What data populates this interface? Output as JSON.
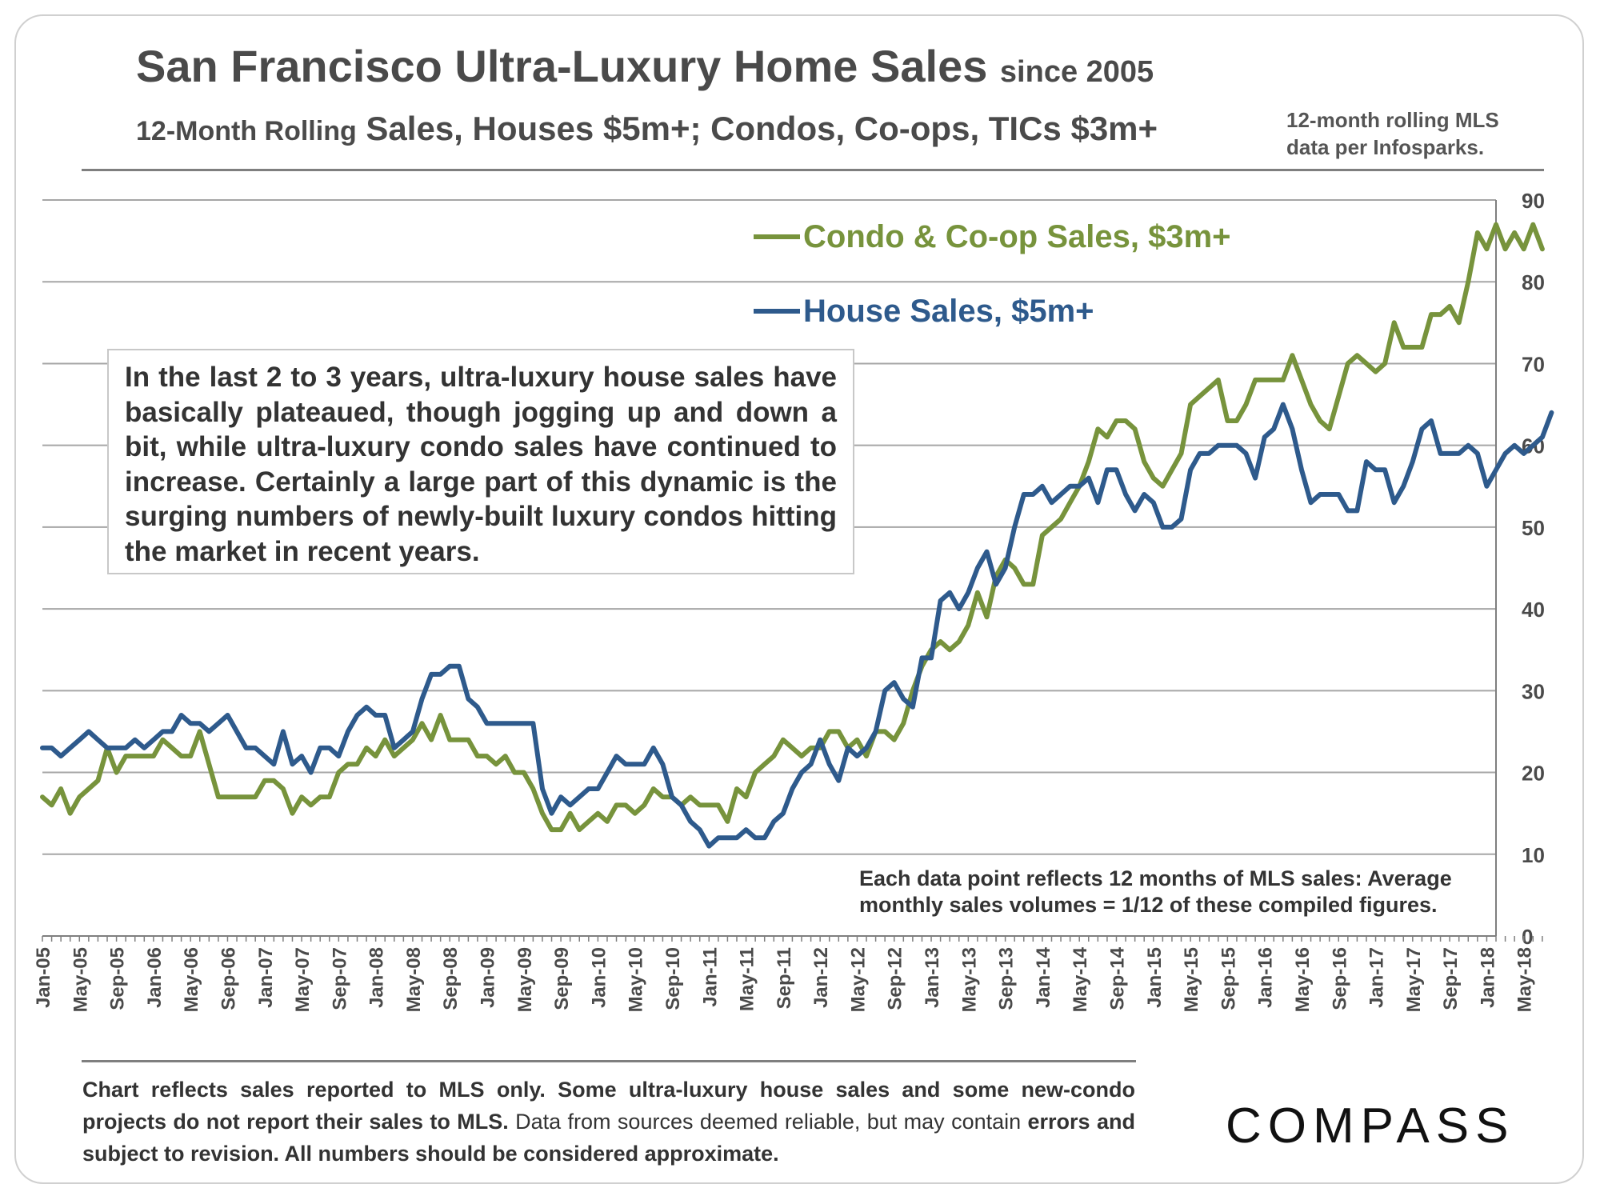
{
  "header": {
    "title": "San Francisco Ultra-Luxury Home Sales",
    "title_suffix": "since 2005",
    "subtitle_prefix": "12-Month Rolling",
    "subtitle_main": "Sales, Houses $5m+; Condos, Co-ops, TICs $3m+",
    "data_note_line1": "12-month rolling MLS",
    "data_note_line2": "data per Infosparks."
  },
  "annotation": "In the last 2 to 3 years, ultra-luxury house sales have basically plateaued, though jogging up and down a bit, while ultra-luxury condo sales have continued to increase. Certainly a large part of this dynamic is the surging numbers of newly-built luxury condos hitting the market in recent years.",
  "point_note": {
    "line1": "Each data point reflects 12 months of MLS sales:  Average",
    "line2": "monthly sales volumes = 1/12 of these compiled figures."
  },
  "footnote": {
    "bold_part": "Chart reflects sales reported to MLS only. Some ultra-luxury house sales and some new-condo projects do not report their sales to MLS.",
    "normal_part": " Data from sources deemed reliable, but may contain",
    "bold_end": "errors and subject to revision. All numbers should be considered approximate."
  },
  "brand": "COMPASS",
  "colors": {
    "condo": "#77933c",
    "house": "#2e5a8c",
    "grid": "#a6a6a6",
    "text": "#4a4a4a"
  },
  "chart_data": {
    "type": "line",
    "title": "San Francisco Ultra-Luxury Home Sales since 2005",
    "xlabel": "",
    "ylabel": "",
    "ylim": [
      0,
      90
    ],
    "yticks": [
      0,
      10,
      20,
      30,
      40,
      50,
      60,
      70,
      80,
      90
    ],
    "grid": true,
    "legend": "top-center",
    "x_tick_labels": [
      "Jan-05",
      "May-05",
      "Sep-05",
      "Jan-06",
      "May-06",
      "Sep-06",
      "Jan-07",
      "May-07",
      "Sep-07",
      "Jan-08",
      "May-08",
      "Sep-08",
      "Jan-09",
      "May-09",
      "Sep-09",
      "Jan-10",
      "May-10",
      "Sep-10",
      "Jan-11",
      "May-11",
      "Sep-11",
      "Jan-12",
      "May-12",
      "Sep-12",
      "Jan-13",
      "May-13",
      "Sep-13",
      "Jan-14",
      "May-14",
      "Sep-14",
      "Jan-15",
      "May-15",
      "Sep-15",
      "Jan-16",
      "May-16",
      "Sep-16",
      "Jan-17",
      "May-17",
      "Sep-17",
      "Jan-18",
      "May-18"
    ],
    "x_start": "Jan-05",
    "x_interval": "monthly",
    "series": [
      {
        "name": "Condo & Co-op Sales, $3m+",
        "color": "#77933c",
        "values": [
          17,
          16,
          18,
          15,
          17,
          18,
          19,
          23,
          20,
          22,
          22,
          22,
          22,
          24,
          23,
          22,
          22,
          25,
          21,
          17,
          17,
          17,
          17,
          17,
          19,
          19,
          18,
          15,
          17,
          16,
          17,
          17,
          20,
          21,
          21,
          23,
          22,
          24,
          22,
          23,
          24,
          26,
          24,
          27,
          24,
          24,
          24,
          22,
          22,
          21,
          22,
          20,
          20,
          18,
          15,
          13,
          13,
          15,
          13,
          14,
          15,
          14,
          16,
          16,
          15,
          16,
          18,
          17,
          17,
          16,
          17,
          16,
          16,
          16,
          14,
          18,
          17,
          20,
          21,
          22,
          24,
          23,
          22,
          23,
          23,
          25,
          25,
          23,
          24,
          22,
          25,
          25,
          24,
          26,
          30,
          33,
          35,
          36,
          35,
          36,
          38,
          42,
          39,
          44,
          46,
          45,
          43,
          43,
          49,
          50,
          51,
          53,
          55,
          58,
          62,
          61,
          63,
          63,
          62,
          58,
          56,
          55,
          57,
          59,
          65,
          66,
          67,
          68,
          63,
          63,
          65,
          68,
          68,
          68,
          68,
          71,
          68,
          65,
          63,
          62,
          66,
          70,
          71,
          70,
          69,
          70,
          75,
          72,
          72,
          72,
          76,
          76,
          77,
          75,
          80,
          86,
          84,
          87,
          84,
          86,
          84,
          87,
          84
        ]
      },
      {
        "name": "House Sales, $5m+",
        "color": "#2e5a8c",
        "values": [
          23,
          23,
          22,
          23,
          24,
          25,
          24,
          23,
          23,
          23,
          24,
          23,
          24,
          25,
          25,
          27,
          26,
          26,
          25,
          26,
          27,
          25,
          23,
          23,
          22,
          21,
          25,
          21,
          22,
          20,
          23,
          23,
          22,
          25,
          27,
          28,
          27,
          27,
          23,
          24,
          25,
          29,
          32,
          32,
          33,
          33,
          29,
          28,
          26,
          26,
          26,
          26,
          26,
          26,
          18,
          15,
          17,
          16,
          17,
          18,
          18,
          20,
          22,
          21,
          21,
          21,
          23,
          21,
          17,
          16,
          14,
          13,
          11,
          12,
          12,
          12,
          13,
          12,
          12,
          14,
          15,
          18,
          20,
          21,
          24,
          21,
          19,
          23,
          22,
          23,
          25,
          30,
          31,
          29,
          28,
          34,
          34,
          41,
          42,
          40,
          42,
          45,
          47,
          43,
          45,
          50,
          54,
          54,
          55,
          53,
          54,
          55,
          55,
          56,
          53,
          57,
          57,
          54,
          52,
          54,
          53,
          50,
          50,
          51,
          57,
          59,
          59,
          60,
          60,
          60,
          59,
          56,
          61,
          62,
          65,
          62,
          57,
          53,
          54,
          54,
          54,
          52,
          52,
          58,
          57,
          57,
          53,
          55,
          58,
          62,
          63,
          59,
          59,
          59,
          60,
          59,
          55,
          57,
          59,
          60,
          59,
          60,
          61,
          64
        ]
      }
    ]
  }
}
